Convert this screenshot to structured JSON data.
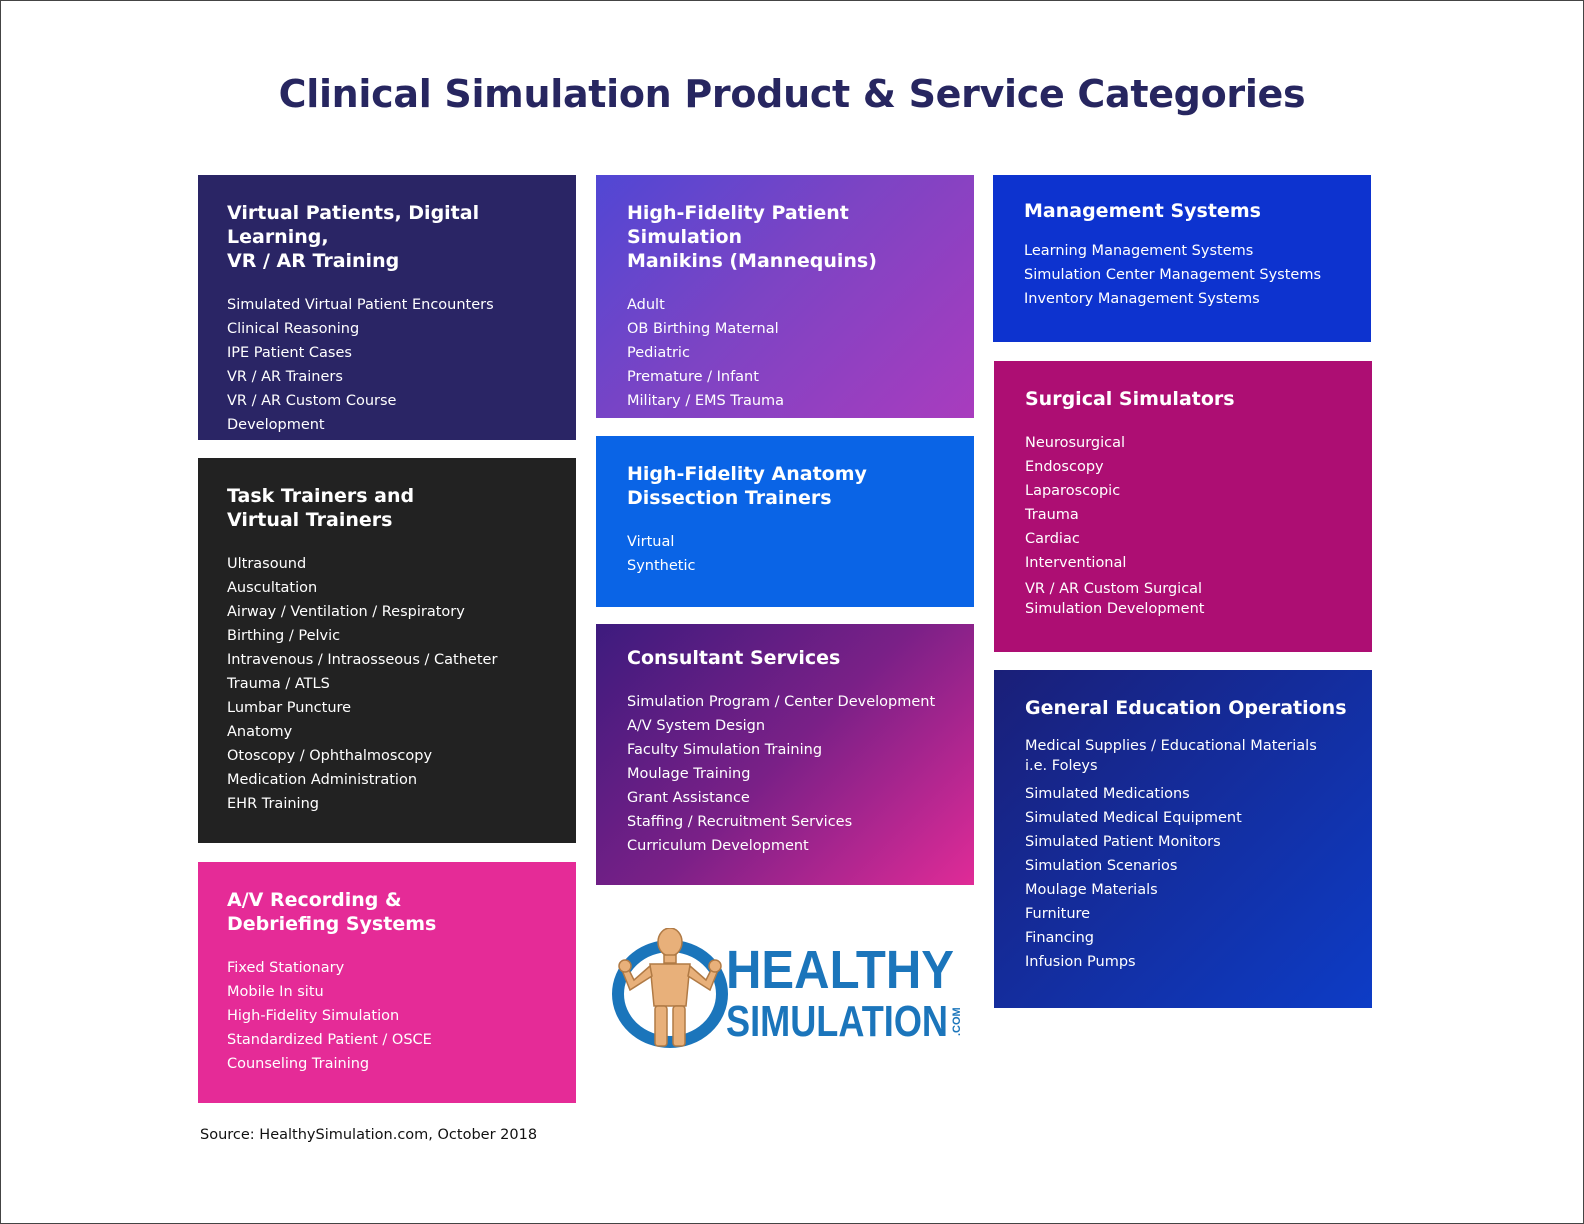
{
  "title": "Clinical Simulation Product & Service Categories",
  "categories": {
    "virtual_patients": {
      "heading": "Virtual Patients, Digital Learning,\nVR / AR Training",
      "items": [
        "Simulated Virtual Patient Encounters",
        "Clinical Reasoning",
        "IPE Patient Cases",
        "VR / AR Trainers",
        "VR / AR Custom Course",
        "Development"
      ],
      "color": "#2a2565"
    },
    "task_trainers": {
      "heading": "Task Trainers and\nVirtual Trainers",
      "items": [
        "Ultrasound",
        "Auscultation",
        "Airway / Ventilation / Respiratory",
        "Birthing / Pelvic",
        "Intravenous / Intraosseous / Catheter",
        "Trauma / ATLS",
        "Lumbar Puncture",
        "Anatomy",
        "Otoscopy / Ophthalmoscopy",
        "Medication Administration",
        "EHR Training"
      ],
      "color": "#222222"
    },
    "av_recording": {
      "heading": "A/V Recording &\nDebriefing Systems",
      "items": [
        "Fixed Stationary",
        "Mobile In situ",
        "High-Fidelity Simulation",
        "Standardized Patient / OSCE",
        "Counseling Training"
      ],
      "color": "#e52b97"
    },
    "manikins": {
      "heading": "High-Fidelity Patient Simulation\nManikins  (Mannequins)",
      "items": [
        "Adult",
        "OB Birthing Maternal",
        "Pediatric",
        "Premature / Infant",
        "Military / EMS Trauma"
      ],
      "color": "#7c44c4"
    },
    "anatomy_dissection": {
      "heading": "High-Fidelity Anatomy\nDissection Trainers",
      "items": [
        "Virtual",
        "Synthetic"
      ],
      "color": "#0a64e6"
    },
    "consultant": {
      "heading": "Consultant Services",
      "items": [
        "Simulation Program / Center Development",
        "A/V System Design",
        "Faculty Simulation Training",
        "Moulage Training",
        "Grant Assistance",
        "Staffing / Recruitment Services",
        "Curriculum Development"
      ],
      "color": "#7a2087"
    },
    "management": {
      "heading": "Management Systems",
      "items": [
        "Learning Management Systems",
        "Simulation Center Management Systems",
        "Inventory Management Systems"
      ],
      "color": "#0d33cf"
    },
    "surgical": {
      "heading": "Surgical Simulators",
      "items": [
        "Neurosurgical",
        "Endoscopy",
        "Laparoscopic",
        "Trauma",
        "Cardiac",
        "Interventional"
      ],
      "multiline_item": "VR / AR Custom Surgical\nSimulation Development",
      "color": "#ad0e73"
    },
    "general_education": {
      "heading": "General Education Operations",
      "multiline_item": "Medical Supplies / Educational Materials\ni.e. Foleys",
      "items": [
        "Simulated Medications",
        "Simulated Medical Equipment",
        "Simulated Patient Monitors",
        "Simulation Scenarios",
        "Moulage Materials",
        "Furniture",
        "Financing",
        "Infusion Pumps"
      ],
      "color": "#0d3cc6"
    }
  },
  "logo": {
    "word1": "HEALTHY",
    "word2": "SIMULATION",
    "suffix": ".COM",
    "icon": "manikin-figure-icon",
    "color": "#1b75bb"
  },
  "source": "Source: HealthySimulation.com, October 2018"
}
